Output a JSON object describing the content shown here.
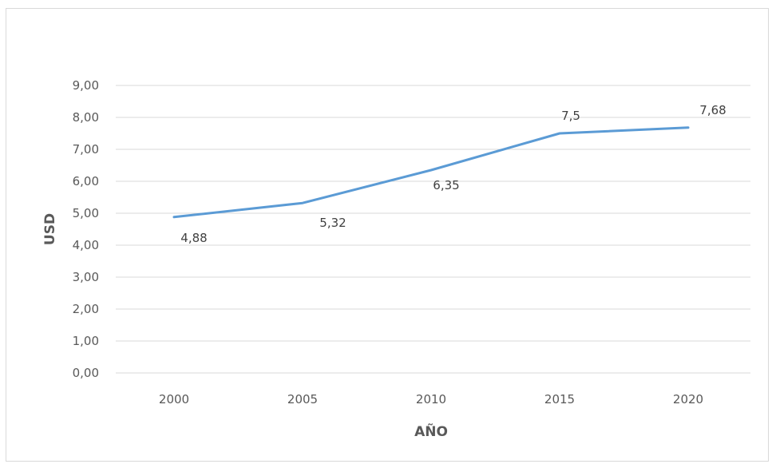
{
  "chart_data": {
    "type": "line",
    "title": "",
    "xlabel": "AÑO",
    "ylabel": "USD",
    "categories": [
      "2000",
      "2005",
      "2010",
      "2015",
      "2020"
    ],
    "series": [
      {
        "values": [
          4.88,
          5.32,
          6.35,
          7.5,
          7.68
        ],
        "data_labels": [
          "4,88",
          "5,32",
          "6,35",
          "7,5",
          "7,68"
        ],
        "color": "#5b9bd5"
      }
    ],
    "ylim": [
      0,
      9
    ],
    "yticks": [
      0,
      1,
      2,
      3,
      4,
      5,
      6,
      7,
      8,
      9
    ],
    "ytick_labels": [
      "0,00",
      "1,00",
      "2,00",
      "3,00",
      "4,00",
      "5,00",
      "6,00",
      "7,00",
      "8,00",
      "9,00"
    ],
    "grid": true,
    "grid_color": "#d9d9d9",
    "legend": "none"
  }
}
